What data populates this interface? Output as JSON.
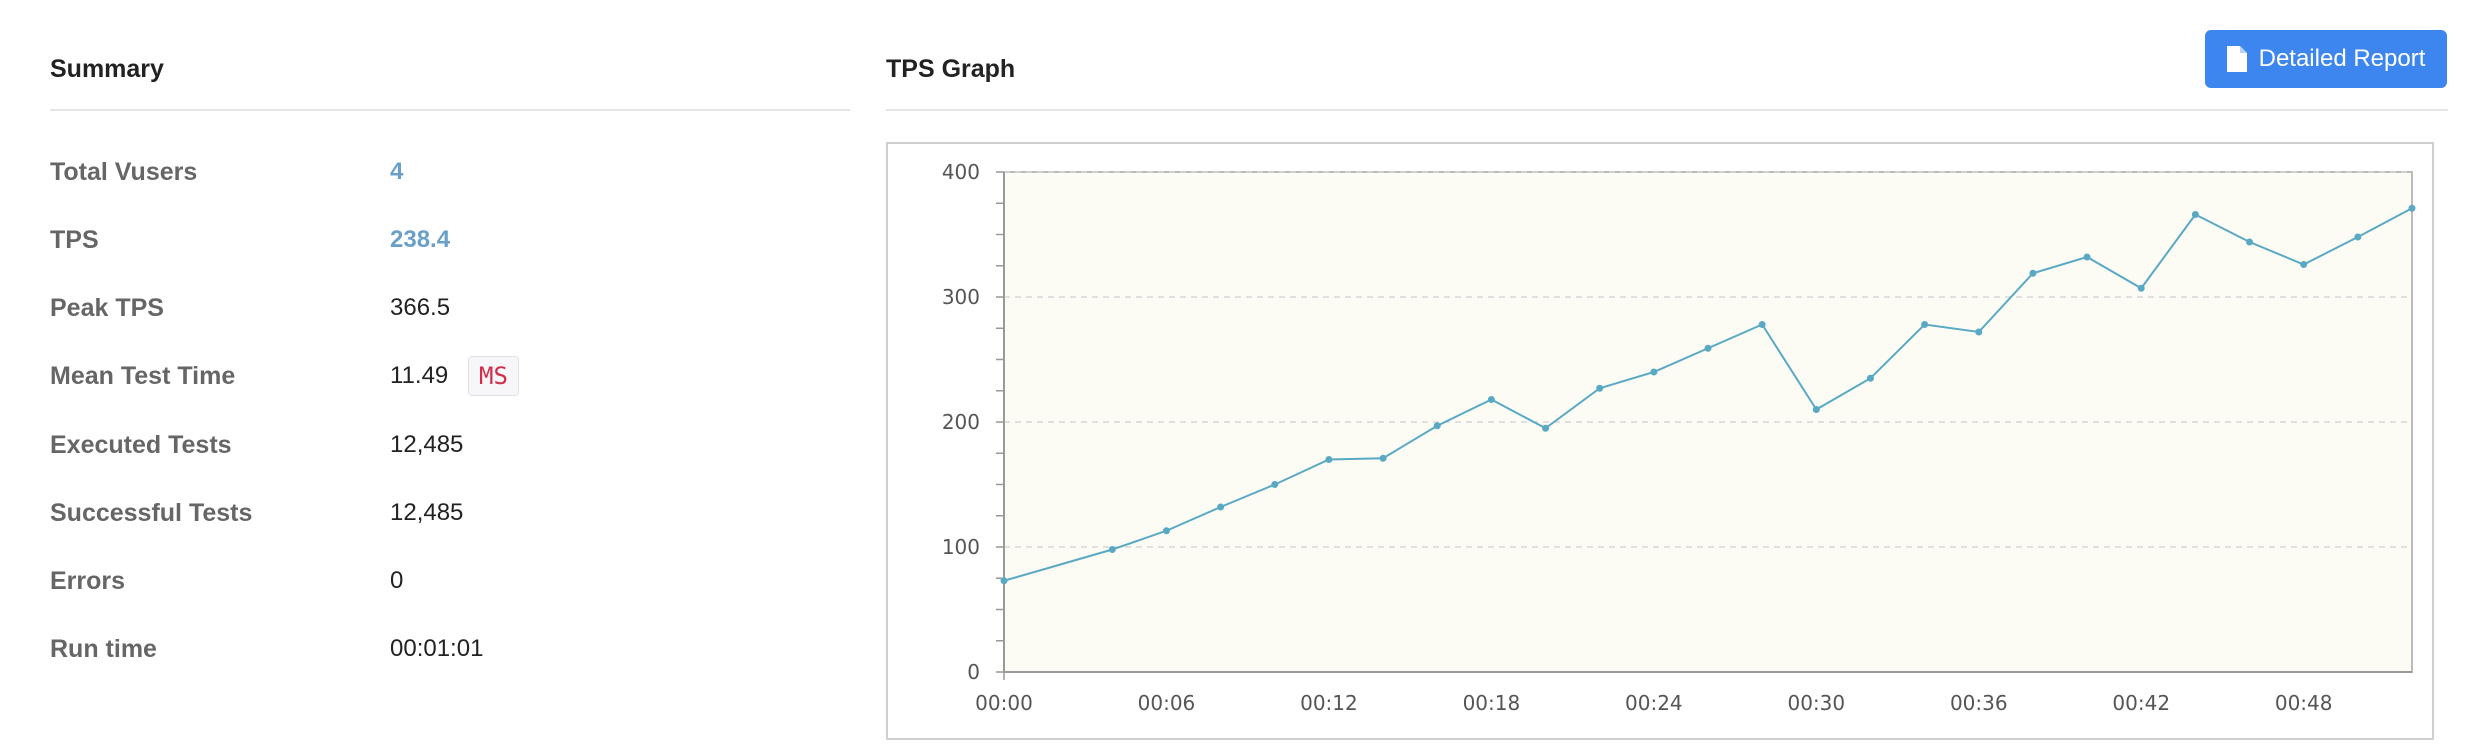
{
  "summary": {
    "title": "Summary",
    "rows": [
      {
        "label": "Total Vusers",
        "value": "4"
      },
      {
        "label": "TPS",
        "value": "238.4"
      },
      {
        "label": "Peak TPS",
        "value": "366.5"
      },
      {
        "label": "Mean Test Time",
        "value": "11.49",
        "unit": "MS"
      },
      {
        "label": "Executed Tests",
        "value": "12,485"
      },
      {
        "label": "Successful Tests",
        "value": "12,485"
      },
      {
        "label": "Errors",
        "value": "0"
      },
      {
        "label": "Run time",
        "value": "00:01:01"
      }
    ]
  },
  "graph": {
    "title": "TPS Graph",
    "report_button": "Detailed Report",
    "button_icon": "file-icon",
    "button_color": "#3d86f0",
    "line_color": "#5aa9c4",
    "plot_background": "#fcfcf5"
  },
  "chart_data": {
    "type": "line",
    "title": "",
    "xlabel": "",
    "ylabel": "",
    "x_ticks": [
      "00:00",
      "00:06",
      "00:12",
      "00:18",
      "00:24",
      "00:30",
      "00:36",
      "00:42",
      "00:48"
    ],
    "y_ticks": [
      0,
      100,
      200,
      300,
      400
    ],
    "xlim": [
      "00:00",
      "00:52"
    ],
    "ylim": [
      0,
      400
    ],
    "grid": true,
    "series": [
      {
        "x": [
          "00:00",
          "00:04",
          "00:06",
          "00:08",
          "00:10",
          "00:12",
          "00:14",
          "00:16",
          "00:18",
          "00:20",
          "00:22",
          "00:24",
          "00:26",
          "00:28",
          "00:30",
          "00:32",
          "00:34",
          "00:36",
          "00:38",
          "00:40",
          "00:42",
          "00:44",
          "00:46",
          "00:48",
          "00:50",
          "00:52"
        ],
        "values": [
          73,
          98,
          113,
          132,
          150,
          170,
          171,
          197,
          218,
          195,
          227,
          240,
          259,
          278,
          210,
          235,
          278,
          272,
          319,
          332,
          307,
          366,
          344,
          326,
          348,
          371
        ]
      }
    ]
  }
}
